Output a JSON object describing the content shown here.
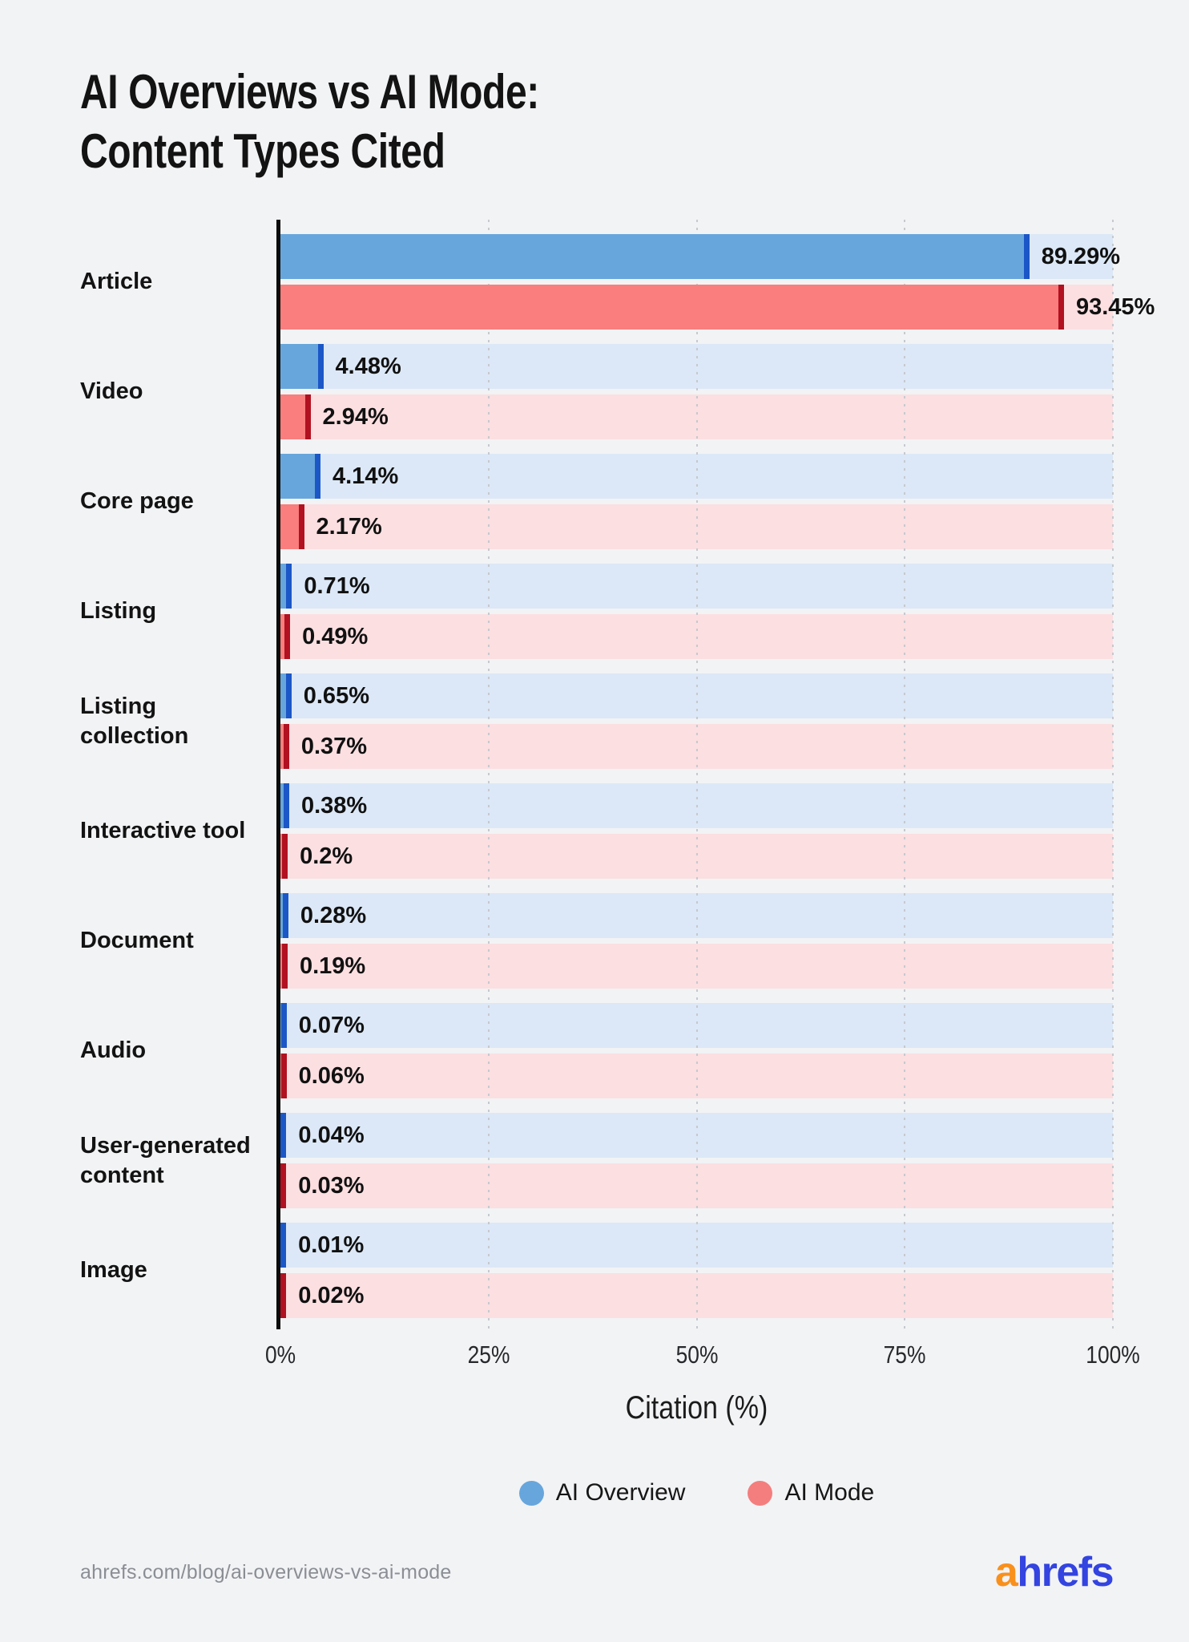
{
  "title": {
    "line1": "AI Overviews vs AI Mode:",
    "line2": "Content Types Cited"
  },
  "chart_data": {
    "type": "bar",
    "orientation": "horizontal",
    "title": "AI Overviews vs AI Mode: Content Types Cited",
    "categories": [
      "Article",
      "Video",
      "Core page",
      "Listing",
      "Listing collection",
      "Interactive tool",
      "Document",
      "Audio",
      "User-generated content",
      "Image"
    ],
    "series": [
      {
        "name": "AI Overview",
        "values": [
          89.29,
          4.48,
          4.14,
          0.71,
          0.65,
          0.38,
          0.28,
          0.07,
          0.04,
          0.01
        ],
        "labels": [
          "89.29%",
          "4.48%",
          "4.14%",
          "0.71%",
          "0.65%",
          "0.38%",
          "0.28%",
          "0.07%",
          "0.04%",
          "0.01%"
        ],
        "fill_color": "#67a6dc",
        "cap_color": "#1c57c7",
        "track_color": "#dce8f7"
      },
      {
        "name": "AI Mode",
        "values": [
          93.45,
          2.94,
          2.17,
          0.49,
          0.37,
          0.2,
          0.19,
          0.06,
          0.03,
          0.02
        ],
        "labels": [
          "93.45%",
          "2.94%",
          "2.17%",
          "0.49%",
          "0.37%",
          "0.2%",
          "0.19%",
          "0.06%",
          "0.03%",
          "0.02%"
        ],
        "fill_color": "#f97e7d",
        "cap_color": "#b11120",
        "track_color": "#fcdfe1"
      }
    ],
    "xlabel": "Citation (%)",
    "xlim": [
      0,
      100
    ],
    "x_ticks": [
      "0%",
      "25%",
      "50%",
      "75%",
      "100%"
    ],
    "grid": true,
    "legend_position": "bottom"
  },
  "legend": {
    "items": [
      {
        "label": "AI Overview",
        "color": "#67a6dc"
      },
      {
        "label": "AI Mode",
        "color": "#f47e7e"
      }
    ]
  },
  "footer": {
    "source": "ahrefs.com/blog/ai-overviews-vs-ai-mode",
    "logo_a": "a",
    "logo_rest": "hrefs"
  }
}
